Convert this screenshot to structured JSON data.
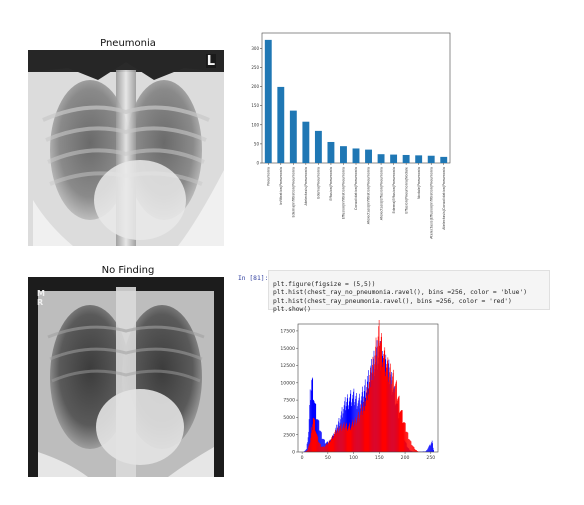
{
  "xrays": [
    {
      "title": "Pneumonia",
      "corner_mark": "L"
    },
    {
      "title": "No Finding",
      "corner_mark": "M R"
    }
  ],
  "cell": {
    "prompt": "In [81]:",
    "code_lines": [
      "plt.figure(figsize = (5,5))",
      "plt.hist(chest_ray_no_pneumonia.ravel(), bins =256, color = 'blue')",
      "plt.hist(chest_ray_pneumonia.ravel(), bins =256, color = 'red')",
      "plt.show()"
    ]
  },
  "chart_data": [
    {
      "type": "bar",
      "title": "",
      "xlabel": "",
      "ylabel": "",
      "ylim": [
        0,
        340
      ],
      "yticks": [
        0,
        50,
        100,
        150,
        200,
        250,
        300
      ],
      "color": "#1f77b4",
      "categories": [
        "Pneumonia",
        "Infiltration|Pneumonia",
        "Edema|Infiltration|Pneumonia",
        "Atelectasis|Pneumonia",
        "Edema|Pneumonia",
        "Effusion|Pneumonia",
        "Effusion|Infiltration|Pneumonia",
        "Consolidation|Pneumonia",
        "Atelectasis|Infiltration|Pneumonia",
        "Atelectasis|Effusion|Pneumonia",
        "Edema|Effusion|Pneumonia",
        "Effusion|Pneumonia|Nodule",
        "Nodule|Pneumonia",
        "Atelectasis|Effusion|Infiltration|Pneumonia",
        "Atelectasis|Consolidation|Pneumonia"
      ],
      "values": [
        322,
        199,
        137,
        108,
        84,
        55,
        44,
        38,
        35,
        23,
        22,
        21,
        20,
        19,
        16
      ]
    },
    {
      "type": "bar",
      "title": "",
      "xlabel": "",
      "ylabel": "",
      "xlim": [
        -8,
        264
      ],
      "ylim": [
        0,
        18500
      ],
      "xticks": [
        0,
        50,
        100,
        150,
        200,
        250
      ],
      "yticks": [
        0,
        2500,
        5000,
        7500,
        10000,
        12500,
        15000,
        17500
      ],
      "series": [
        {
          "name": "blue",
          "color": "#0000ff",
          "x": [
            2,
            8,
            12,
            15,
            18,
            21,
            24,
            28,
            33,
            38,
            44,
            50,
            56,
            62,
            68,
            74,
            80,
            86,
            92,
            98,
            104,
            110,
            116,
            122,
            128,
            134,
            140,
            145,
            150,
            155,
            160,
            165,
            170,
            175,
            180,
            185,
            190,
            195,
            200,
            205,
            210,
            215,
            225,
            240,
            252,
            255
          ],
          "values": [
            0,
            400,
            3000,
            7800,
            10500,
            9200,
            7000,
            5200,
            3600,
            2300,
            1400,
            1300,
            1800,
            2600,
            3800,
            5000,
            6400,
            7300,
            7800,
            8000,
            7700,
            7300,
            7900,
            9400,
            10400,
            11600,
            13400,
            14200,
            14000,
            13200,
            12600,
            12000,
            11200,
            9800,
            8000,
            6000,
            4200,
            2600,
            1400,
            600,
            200,
            60,
            20,
            100,
            1500,
            300
          ]
        },
        {
          "name": "red",
          "color": "#ff0000",
          "x": [
            5,
            10,
            15,
            18,
            21,
            24,
            27,
            30,
            33,
            36,
            40,
            45,
            50,
            55,
            60,
            65,
            70,
            75,
            80,
            85,
            90,
            95,
            100,
            105,
            110,
            115,
            120,
            125,
            130,
            135,
            140,
            145,
            148,
            150,
            152,
            155,
            158,
            160,
            163,
            166,
            170,
            175,
            180,
            185,
            190,
            195,
            200,
            205,
            210,
            215,
            220,
            225,
            230
          ],
          "values": [
            0,
            300,
            1500,
            3200,
            5200,
            4100,
            2800,
            1900,
            1300,
            900,
            700,
            900,
            1300,
            1800,
            2300,
            2900,
            3400,
            3600,
            3700,
            3800,
            3700,
            3800,
            4200,
            4700,
            5200,
            6000,
            7000,
            8300,
            9800,
            11600,
            13400,
            15300,
            16600,
            17800,
            16200,
            15000,
            14000,
            13300,
            12600,
            11800,
            11600,
            10800,
            9900,
            8300,
            6600,
            5000,
            3600,
            2500,
            1500,
            800,
            300,
            80,
            0
          ]
        }
      ]
    }
  ]
}
